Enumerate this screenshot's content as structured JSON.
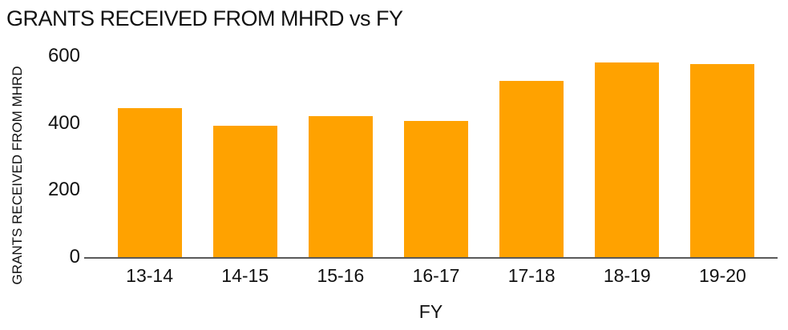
{
  "chart_data": {
    "type": "bar",
    "title": "GRANTS RECEIVED FROM MHRD vs FY",
    "xlabel": "FY",
    "ylabel": "GRANTS RECEIVED FROM MHRD",
    "categories": [
      "13-14",
      "14-15",
      "15-16",
      "16-17",
      "17-18",
      "18-19",
      "19-20"
    ],
    "values": [
      445,
      393,
      420,
      407,
      527,
      582,
      576
    ],
    "ylim": [
      0,
      600
    ],
    "yticks": [
      0,
      200,
      400,
      600
    ],
    "grid": false,
    "legend": "none",
    "colors": {
      "bar": "#FFA200",
      "axis_line": "#595959",
      "text": "#111111"
    }
  }
}
